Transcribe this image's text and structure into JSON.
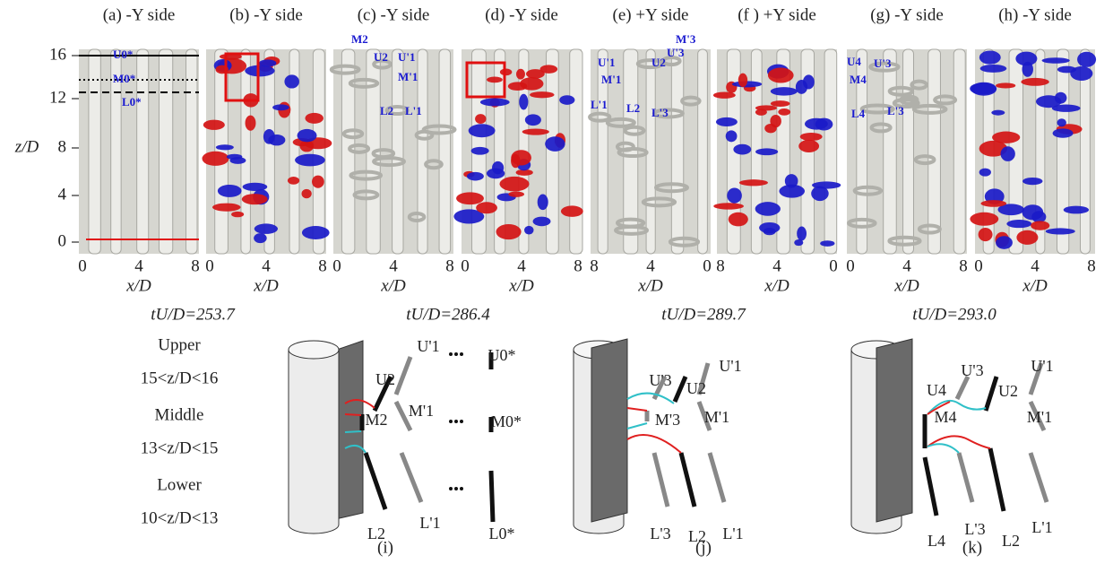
{
  "panels": [
    {
      "title": "(a) -Y side",
      "xticks": [
        "0",
        "4",
        "8"
      ],
      "xlabel": "x/D",
      "annotations": [
        "U0*",
        "M0*",
        "L0*"
      ]
    },
    {
      "title": "(b) -Y side",
      "xticks": [
        "0",
        "4",
        "8"
      ],
      "xlabel": "x/D",
      "annotations": []
    },
    {
      "title": "(c) -Y side",
      "xticks": [
        "0",
        "4",
        "8"
      ],
      "xlabel": "x/D",
      "annotations": [
        "M2",
        "U2",
        "U'1",
        "M'1",
        "L2",
        "L'1"
      ]
    },
    {
      "title": "(d) -Y side",
      "xticks": [
        "0",
        "4",
        "8"
      ],
      "xlabel": "x/D",
      "annotations": []
    },
    {
      "title": "(e) +Y side",
      "xticks": [
        "8",
        "4",
        "0"
      ],
      "xlabel": "x/D",
      "annotations": [
        "U'1",
        "U2",
        "U'3",
        "M'3",
        "M'1",
        "L'1",
        "L2",
        "L'3"
      ]
    },
    {
      "title": "(f ) +Y side",
      "xticks": [
        "8",
        "4",
        "0"
      ],
      "xlabel": "x/D",
      "annotations": []
    },
    {
      "title": "(g) -Y side",
      "xticks": [
        "0",
        "4",
        "8"
      ],
      "xlabel": "x/D",
      "annotations": [
        "U4",
        "U'3",
        "M4",
        "L4",
        "L'3"
      ]
    },
    {
      "title": "(h) -Y side",
      "xticks": [
        "0",
        "4",
        "8"
      ],
      "xlabel": "x/D",
      "annotations": []
    }
  ],
  "yaxis": {
    "label": "z/D",
    "ticks": [
      "16",
      "12",
      "8",
      "4",
      "0"
    ]
  },
  "times": [
    "tU/D=253.7",
    "tU/D=286.4",
    "tU/D=289.7",
    "tU/D=293.0"
  ],
  "levels": [
    {
      "name": "Upper",
      "range": "15<z/D<16"
    },
    {
      "name": "Middle",
      "range": "13<z/D<15"
    },
    {
      "name": "Lower",
      "range": "10<z/D<13"
    }
  ],
  "schematics": [
    {
      "caption": "(i)",
      "labels": [
        "U2",
        "U'1",
        "M2",
        "M'1",
        "L2",
        "L'1",
        "U0*",
        "M0*",
        "L0*"
      ]
    },
    {
      "caption": "(j)",
      "labels": [
        "U'3",
        "U2",
        "U'1",
        "M'3",
        "M'1",
        "L'3",
        "L2",
        "L'1"
      ]
    },
    {
      "caption": "(k)",
      "labels": [
        "U4",
        "U'3",
        "U2",
        "U'1",
        "M4",
        "M'1",
        "L4",
        "L'3",
        "L2",
        "L'1"
      ]
    }
  ]
}
